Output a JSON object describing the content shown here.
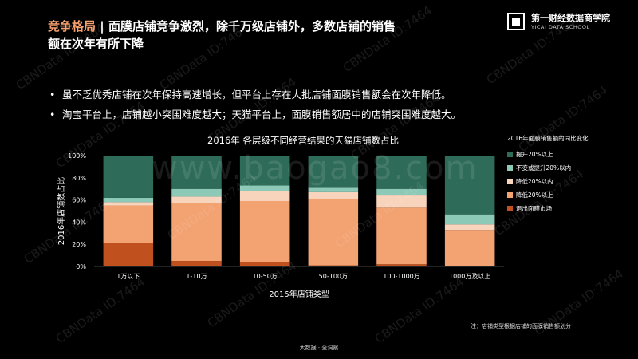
{
  "header": {
    "title_accent": "竞争格局",
    "title_sep": "|",
    "title_line1": "面膜店铺竞争激烈，除千万级店铺外，多数店铺的销售",
    "title_line2": "额在次年有所下降"
  },
  "brand": {
    "name_cn": "第一财经数据商学院",
    "name_en": "YICAI DATA SCHOOL"
  },
  "bullets": [
    "虽不乏优秀店铺在次年保持高速增长，但平台上存在大批店铺面膜销售额会在次年降低。",
    "淘宝平台上，店铺越小突围难度越大；天猫平台上，面膜销售额居中的店铺突围难度越大。"
  ],
  "chart_data": {
    "type": "bar",
    "stacked": true,
    "title": "2016年 各层级不同经营结果的天猫店铺数占比",
    "xlabel": "2015年店铺类型",
    "ylabel": "2016年店铺数占比",
    "ylim": [
      0,
      100
    ],
    "yticks": [
      "0%",
      "20%",
      "40%",
      "60%",
      "80%",
      "100%"
    ],
    "categories": [
      "1万以下",
      "1-10万",
      "10-50万",
      "50-100万",
      "100-1000万",
      "1000万及以上"
    ],
    "legend_title": "2016年面膜销售额的同比变化",
    "legend_position": "right",
    "series": [
      {
        "name": "退出面膜市场",
        "color": "#c0501e",
        "values": [
          21,
          5,
          4,
          1,
          2,
          0
        ]
      },
      {
        "name": "降低20%以上",
        "color": "#f3a272",
        "values": [
          34,
          52,
          55,
          60,
          51,
          33
        ]
      },
      {
        "name": "降低20%以内",
        "color": "#f9d4bd",
        "values": [
          3,
          6,
          9,
          6,
          11,
          5
        ]
      },
      {
        "name": "不变或提升20%以内",
        "color": "#8cc9b6",
        "values": [
          4,
          7,
          5,
          4,
          6,
          9
        ]
      },
      {
        "name": "提升20%以上",
        "color": "#2e6b58",
        "values": [
          38,
          30,
          27,
          29,
          30,
          53
        ]
      }
    ]
  },
  "note": "注：店铺类型根据店铺的面膜销售额划分",
  "footer": "大数据 · 全洞察",
  "watermarks": [
    "CBNData ID:7464",
    "www.baogao8.com"
  ]
}
